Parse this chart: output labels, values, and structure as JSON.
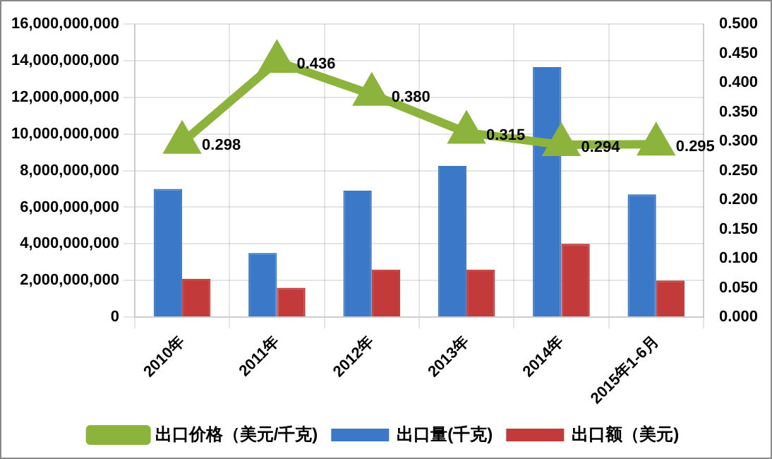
{
  "chart_data": {
    "type": "bar",
    "categories": [
      "2010年",
      "2011年",
      "2012年",
      "2013年",
      "2014年",
      "2015年1-6月"
    ],
    "series": [
      {
        "name": "出口量(千克)",
        "color": "#3c78c8",
        "values": [
          7000000000,
          3500000000,
          6900000000,
          8250000000,
          13650000000,
          6700000000
        ]
      },
      {
        "name": "出口额（美元)",
        "color": "#c23a3a",
        "values": [
          2100000000,
          1600000000,
          2600000000,
          2600000000,
          4000000000,
          2000000000
        ]
      },
      {
        "name": "出口价格（美元/千克)",
        "type": "line",
        "axis": "y2",
        "color": "#8cb43c",
        "marker": "triangle",
        "values": [
          0.298,
          0.436,
          0.38,
          0.315,
          0.294,
          0.295
        ],
        "value_labels": [
          "0.298",
          "0.436",
          "0.380",
          "0.315",
          "0.294",
          "0.295"
        ]
      }
    ],
    "ylim": [
      0,
      16000000000
    ],
    "yticks": [
      0,
      {
        "value": 2000000000,
        "label": "2,000,000,000"
      },
      {
        "value": 4000000000,
        "label": "4,000,000,000"
      },
      {
        "value": 6000000000,
        "label": "6,000,000,000"
      },
      {
        "value": 8000000000,
        "label": "8,000,000,000"
      },
      {
        "value": 10000000000,
        "label": "10,000,000,000"
      },
      {
        "value": 12000000000,
        "label": "12,000,000,000"
      },
      {
        "value": 14000000000,
        "label": "14,000,000,000"
      },
      {
        "value": 16000000000,
        "label": "16,000,000,000"
      }
    ],
    "y2lim": [
      0,
      0.5
    ],
    "y2ticks": [
      {
        "value": 0,
        "label": "0.000"
      },
      {
        "value": 0.05,
        "label": "0.050"
      },
      {
        "value": 0.1,
        "label": "0.100"
      },
      {
        "value": 0.15,
        "label": "0.150"
      },
      {
        "value": 0.2,
        "label": "0.200"
      },
      {
        "value": 0.25,
        "label": "0.250"
      },
      {
        "value": 0.3,
        "label": "0.300"
      },
      {
        "value": 0.35,
        "label": "0.350"
      },
      {
        "value": 0.4,
        "label": "0.400"
      },
      {
        "value": 0.45,
        "label": "0.450"
      },
      {
        "value": 0.5,
        "label": "0.500"
      }
    ],
    "grid": true,
    "legend": "bottom"
  }
}
